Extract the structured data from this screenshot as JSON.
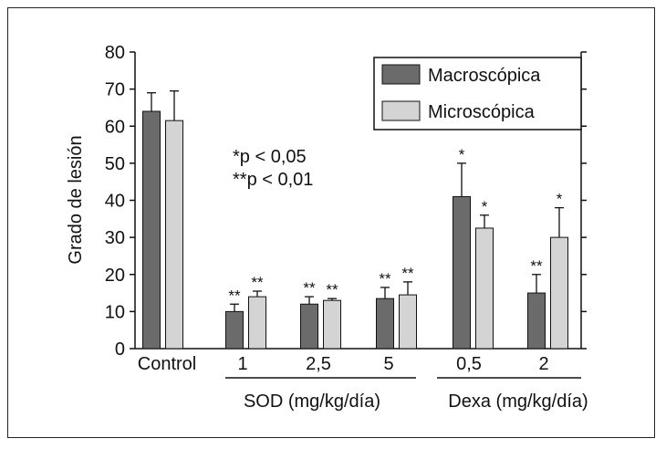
{
  "chart_data": {
    "type": "bar",
    "ylabel": "Grado de lesión",
    "ylim": [
      0,
      80
    ],
    "yticks": [
      0,
      10,
      20,
      30,
      40,
      50,
      60,
      70,
      80
    ],
    "categories": [
      "Control",
      "1",
      "2,5",
      "5",
      "0,5",
      "2"
    ],
    "groups": [
      {
        "label": "SOD (mg/kg/día)",
        "categories": [
          "1",
          "2,5",
          "5"
        ]
      },
      {
        "label": "Dexa (mg/kg/día)",
        "categories": [
          "0,5",
          "2"
        ]
      }
    ],
    "series": [
      {
        "name": "Macroscópica",
        "color": "#6b6b6b",
        "values": [
          64,
          10,
          12,
          13.5,
          41,
          15
        ],
        "errors": [
          5,
          2,
          2,
          3,
          9,
          5
        ],
        "marks": [
          "",
          "**",
          "**",
          "**",
          "*",
          "**"
        ]
      },
      {
        "name": "Microscópica",
        "color": "#d4d4d4",
        "values": [
          61.5,
          14,
          13,
          14.5,
          32.5,
          30
        ],
        "errors": [
          8,
          1.5,
          0.5,
          3.5,
          3.5,
          8
        ],
        "marks": [
          "",
          "**",
          "**",
          "**",
          "*",
          "*"
        ]
      }
    ],
    "annotations": [
      "*p < 0,05",
      "**p < 0,01"
    ],
    "legend_position": "top-right",
    "grid": false
  }
}
